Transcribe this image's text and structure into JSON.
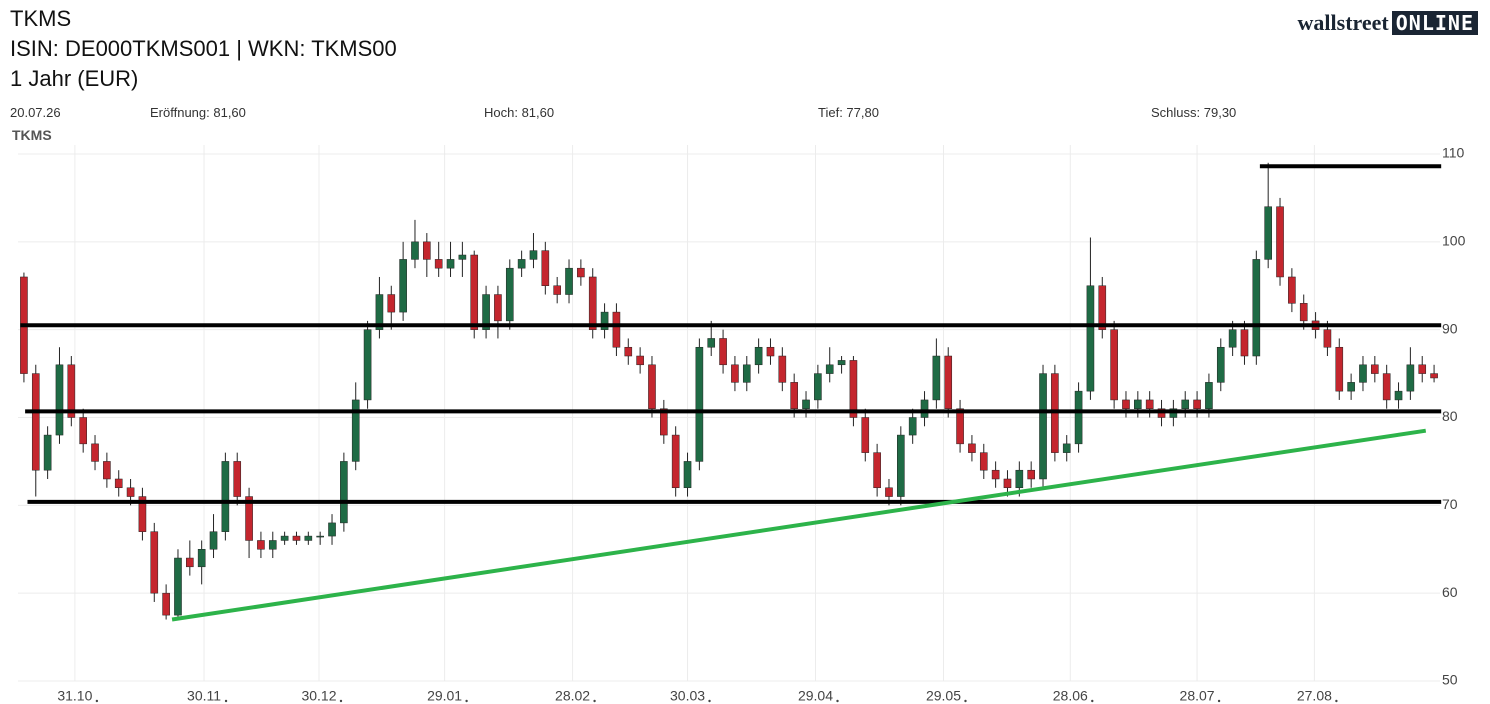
{
  "header": {
    "name": "TKMS",
    "ids": "ISIN: DE000TKMS001  | WKN: TKMS00",
    "period": "1 Jahr (EUR)",
    "logo_main": "wallstreet",
    "logo_box": "ONLINE",
    "info": [
      "20.07.26",
      "Eröffnung: 81,60",
      "Hoch: 81,60",
      "Tief: 77,80",
      "Schluss: 79,30"
    ]
  },
  "chart_data": {
    "type": "candlestick",
    "label": "TKMS",
    "up_color": "#1f6b45",
    "down_color": "#c4262e",
    "open": [
      96,
      85,
      74,
      78,
      86,
      80,
      77,
      75,
      73,
      72,
      71,
      67,
      60,
      57.5,
      64,
      63,
      65,
      67,
      75,
      71,
      66,
      65,
      66,
      66.5,
      66,
      66.5,
      66.5,
      68,
      75,
      82,
      90,
      94,
      92,
      98,
      100,
      98,
      97,
      98,
      98.5,
      90,
      94,
      91,
      97,
      98,
      99,
      95,
      94,
      97,
      96,
      90,
      92,
      88,
      87,
      86,
      81,
      78,
      72,
      75,
      88,
      89,
      86,
      84,
      86,
      88,
      87,
      84,
      81,
      82,
      85,
      86,
      86.5,
      80,
      76,
      72,
      71,
      78,
      80,
      82,
      87,
      81,
      77,
      76,
      74,
      73,
      72,
      74,
      73,
      85,
      76,
      77,
      83,
      95,
      90,
      82,
      81,
      82,
      81,
      80,
      81,
      82,
      81,
      84,
      88,
      90,
      87,
      98,
      104,
      96,
      93,
      91,
      90,
      88,
      83,
      84,
      86,
      85,
      82,
      83,
      86,
      85
    ],
    "close": [
      85,
      74,
      78,
      86,
      80,
      77,
      75,
      73,
      72,
      71,
      67,
      60,
      57.5,
      64,
      63,
      65,
      67,
      75,
      71,
      66,
      65,
      66,
      66.5,
      66,
      66.5,
      66.5,
      68,
      75,
      82,
      90,
      94,
      92,
      98,
      100,
      98,
      97,
      98,
      98.5,
      90,
      94,
      91,
      97,
      98,
      99,
      95,
      94,
      97,
      96,
      90,
      92,
      88,
      87,
      86,
      81,
      78,
      72,
      75,
      88,
      89,
      86,
      84,
      86,
      88,
      87,
      84,
      81,
      82,
      85,
      86,
      86.5,
      80,
      76,
      72,
      71,
      78,
      80,
      82,
      87,
      81,
      77,
      76,
      74,
      73,
      72,
      74,
      73,
      85,
      76,
      77,
      83,
      95,
      90,
      82,
      81,
      82,
      81,
      80,
      81,
      82,
      81,
      84,
      88,
      90,
      87,
      98,
      104,
      96,
      93,
      91,
      90,
      88,
      83,
      84,
      86,
      85,
      82,
      83,
      86,
      85,
      84.5
    ],
    "high": [
      96.5,
      86,
      79,
      88,
      87,
      81,
      78,
      76,
      74,
      73,
      72,
      68,
      61,
      65,
      66,
      66,
      69,
      76,
      76,
      72,
      67,
      67,
      67,
      67,
      67,
      67,
      69,
      76,
      84,
      91,
      96,
      95,
      100,
      102.5,
      101,
      100,
      100,
      100,
      99,
      95,
      95,
      98,
      99,
      101,
      100,
      96,
      98,
      98,
      97,
      93,
      93,
      89,
      88,
      87,
      82,
      79,
      76,
      89,
      91,
      90,
      87,
      87,
      89,
      89,
      88,
      85,
      83,
      86,
      88,
      87,
      87,
      81,
      77,
      73,
      79,
      81,
      83,
      89,
      88,
      82,
      78,
      77,
      75,
      74,
      75,
      75,
      86,
      86,
      78,
      84,
      100.5,
      96,
      91,
      83,
      83,
      83,
      82,
      82,
      83,
      83,
      85,
      89,
      91,
      91,
      99,
      109,
      105,
      97,
      94,
      92,
      91,
      89,
      85,
      87,
      87,
      86,
      84,
      88,
      87,
      86
    ],
    "low": [
      84,
      71,
      73,
      77,
      79,
      76,
      74,
      72,
      71,
      70,
      66,
      59,
      57,
      57,
      62,
      61,
      64,
      66,
      70,
      64,
      64,
      64,
      65.5,
      65.5,
      65.5,
      65.5,
      65.5,
      67,
      74,
      81,
      89,
      90,
      91,
      97,
      96,
      96,
      96,
      96,
      89,
      89,
      89,
      90,
      96,
      97,
      94,
      93,
      93,
      95,
      89,
      89,
      87,
      86,
      85,
      80,
      77,
      71,
      71,
      74,
      87,
      85,
      83,
      83,
      85,
      86,
      83,
      80,
      80,
      81,
      84,
      85,
      79,
      75,
      71,
      70,
      70,
      77,
      79,
      81,
      80,
      76,
      75,
      73,
      72,
      71,
      71,
      72,
      72,
      75,
      75,
      76,
      82,
      89,
      81,
      80,
      80,
      80,
      79,
      79,
      80,
      80,
      80,
      83,
      87,
      86,
      86,
      97,
      95,
      92,
      90,
      89,
      87,
      82,
      82,
      83,
      84,
      81,
      81,
      82,
      84,
      84
    ],
    "xlim": [
      -0.5,
      119.5
    ],
    "xticks": [
      {
        "value": 4.3,
        "label": "31.10"
      },
      {
        "value": 15.2,
        "label": "30.11"
      },
      {
        "value": 24.9,
        "label": "30.12"
      },
      {
        "value": 35.5,
        "label": "29.01"
      },
      {
        "value": 46.3,
        "label": "28.02"
      },
      {
        "value": 56.0,
        "label": "30.03"
      },
      {
        "value": 66.8,
        "label": "29.04"
      },
      {
        "value": 77.6,
        "label": "29.05"
      },
      {
        "value": 88.3,
        "label": "28.06"
      },
      {
        "value": 99.0,
        "label": "28.07"
      },
      {
        "value": 108.9,
        "label": "27.08"
      }
    ],
    "ylim": [
      50,
      110
    ],
    "yticks": [
      50,
      60,
      70,
      80,
      90,
      100,
      110
    ],
    "grid": true,
    "hlines": [
      {
        "value": 108.6,
        "from": 104.3,
        "to": 119.6
      },
      {
        "value": 90.5,
        "from": -0.3,
        "to": 119.6
      },
      {
        "value": 80.7,
        "from": 0.1,
        "to": 119.6
      },
      {
        "value": 70.4,
        "from": 0.3,
        "to": 119.6
      }
    ],
    "hline_color": "#000000",
    "trendline": {
      "x": [
        12.5,
        118.3
      ],
      "y": [
        57.0,
        78.5
      ],
      "color": "#2db34a"
    }
  }
}
